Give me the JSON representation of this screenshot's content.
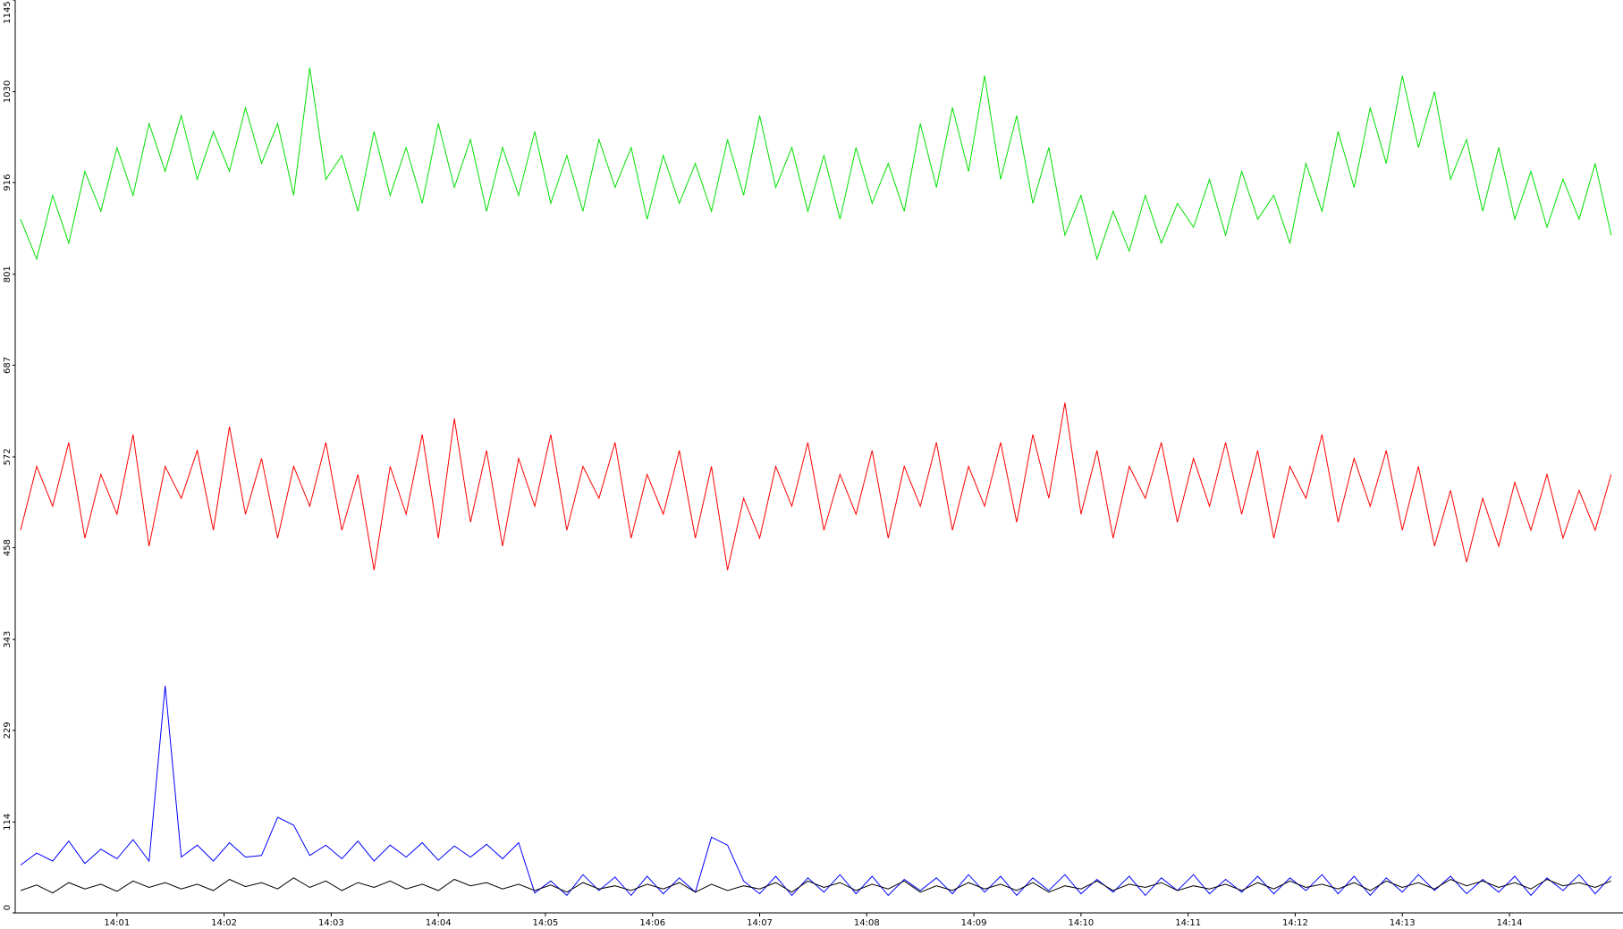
{
  "chart_data": {
    "type": "line",
    "x": [
      0.1,
      0.25,
      0.4,
      0.55,
      0.7,
      0.85,
      1,
      1.15,
      1.3,
      1.45,
      1.6,
      1.75,
      1.9,
      2.05,
      2.2,
      2.35,
      2.5,
      2.65,
      2.8,
      2.95,
      3.1,
      3.25,
      3.4,
      3.55,
      3.7,
      3.85,
      4,
      4.15,
      4.3,
      4.45,
      4.6,
      4.75,
      4.9,
      5.05,
      5.2,
      5.35,
      5.5,
      5.65,
      5.8,
      5.95,
      6.1,
      6.25,
      6.4,
      6.55,
      6.7,
      6.85,
      7,
      7.15,
      7.3,
      7.45,
      7.6,
      7.75,
      7.9,
      8.05,
      8.2,
      8.35,
      8.5,
      8.65,
      8.8,
      8.95,
      9.1,
      9.25,
      9.4,
      9.55,
      9.7,
      9.85,
      10,
      10.15,
      10.3,
      10.45,
      10.6,
      10.75,
      10.9,
      11.05,
      11.2,
      11.35,
      11.5,
      11.65,
      11.8,
      11.95,
      12.1,
      12.25,
      12.4,
      12.55,
      12.7,
      12.85,
      13,
      13.15,
      13.3,
      13.45,
      13.6,
      13.75,
      13.9,
      14.05,
      14.2,
      14.35,
      14.5,
      14.65,
      14.8,
      14.95
    ],
    "series": [
      {
        "color": "#00e000",
        "values": [
          870,
          820,
          900,
          840,
          930,
          880,
          960,
          900,
          990,
          930,
          1000,
          920,
          980,
          930,
          1010,
          940,
          990,
          900,
          1060,
          920,
          950,
          880,
          980,
          900,
          960,
          890,
          990,
          910,
          970,
          880,
          960,
          900,
          980,
          890,
          950,
          880,
          970,
          910,
          960,
          870,
          950,
          890,
          940,
          880,
          970,
          900,
          1000,
          910,
          960,
          880,
          950,
          870,
          960,
          890,
          940,
          880,
          990,
          910,
          1010,
          930,
          1050,
          920,
          1000,
          890,
          960,
          850,
          900,
          820,
          880,
          830,
          900,
          840,
          890,
          860,
          920,
          850,
          930,
          870,
          900,
          840,
          940,
          880,
          980,
          910,
          1010,
          940,
          1050,
          960,
          1030,
          920,
          970,
          880,
          960,
          870,
          930,
          860,
          920,
          870,
          940,
          850
        ]
      },
      {
        "color": "#ff0000",
        "values": [
          480,
          560,
          510,
          590,
          470,
          550,
          500,
          600,
          460,
          560,
          520,
          580,
          480,
          610,
          500,
          570,
          470,
          560,
          510,
          590,
          480,
          550,
          430,
          560,
          500,
          600,
          470,
          620,
          490,
          580,
          460,
          570,
          510,
          600,
          480,
          560,
          520,
          590,
          470,
          550,
          500,
          580,
          470,
          560,
          430,
          520,
          470,
          560,
          510,
          590,
          480,
          550,
          500,
          580,
          470,
          560,
          510,
          590,
          480,
          560,
          510,
          590,
          490,
          600,
          520,
          640,
          500,
          580,
          470,
          560,
          520,
          590,
          490,
          570,
          510,
          590,
          500,
          580,
          470,
          560,
          520,
          600,
          490,
          570,
          510,
          580,
          480,
          560,
          460,
          530,
          440,
          520,
          460,
          540,
          480,
          550,
          470,
          530,
          480,
          550
        ]
      },
      {
        "color": "#0000ff",
        "values": [
          60,
          75,
          65,
          90,
          62,
          80,
          68,
          92,
          65,
          285,
          70,
          85,
          65,
          88,
          70,
          72,
          120,
          110,
          72,
          85,
          68,
          90,
          65,
          85,
          70,
          88,
          66,
          84,
          70,
          86,
          68,
          88,
          25,
          40,
          22,
          48,
          28,
          45,
          22,
          46,
          24,
          44,
          26,
          95,
          85,
          40,
          24,
          46,
          22,
          44,
          26,
          48,
          24,
          46,
          22,
          42,
          28,
          44,
          24,
          48,
          26,
          46,
          22,
          44,
          28,
          48,
          24,
          42,
          26,
          46,
          22,
          44,
          28,
          48,
          24,
          42,
          26,
          46,
          24,
          44,
          28,
          48,
          24,
          46,
          22,
          44,
          26,
          48,
          28,
          46,
          24,
          42,
          26,
          46,
          22,
          44,
          28,
          48,
          24,
          46
        ]
      },
      {
        "color": "#000000",
        "values": [
          28,
          35,
          25,
          38,
          30,
          36,
          27,
          40,
          32,
          38,
          30,
          36,
          28,
          42,
          33,
          38,
          30,
          44,
          32,
          40,
          28,
          38,
          32,
          40,
          30,
          36,
          28,
          42,
          34,
          38,
          30,
          36,
          28,
          35,
          26,
          38,
          30,
          34,
          28,
          36,
          30,
          38,
          26,
          36,
          28,
          34,
          30,
          38,
          26,
          40,
          32,
          38,
          28,
          36,
          30,
          40,
          26,
          34,
          28,
          38,
          30,
          36,
          28,
          38,
          26,
          34,
          30,
          40,
          28,
          36,
          32,
          38,
          28,
          34,
          30,
          36,
          28,
          38,
          30,
          40,
          32,
          36,
          30,
          38,
          28,
          40,
          32,
          38,
          30,
          42,
          34,
          40,
          32,
          38,
          30,
          42,
          34,
          38,
          32,
          40
        ]
      }
    ],
    "xlim": [
      0.05,
      15.06
    ],
    "xticks": [
      {
        "value": 1,
        "label": "14:01"
      },
      {
        "value": 2,
        "label": "14:02"
      },
      {
        "value": 3,
        "label": "14:03"
      },
      {
        "value": 4,
        "label": "14:04"
      },
      {
        "value": 5,
        "label": "14:05"
      },
      {
        "value": 6,
        "label": "14:06"
      },
      {
        "value": 7,
        "label": "14:07"
      },
      {
        "value": 8,
        "label": "14:08"
      },
      {
        "value": 9,
        "label": "14:09"
      },
      {
        "value": 10,
        "label": "14:10"
      },
      {
        "value": 11,
        "label": "14:11"
      },
      {
        "value": 12,
        "label": "14:12"
      },
      {
        "value": 13,
        "label": "14:13"
      },
      {
        "value": 14,
        "label": "14:14"
      }
    ],
    "ylim": [
      0,
      1145
    ],
    "yticks": [
      0,
      114,
      229,
      343,
      458,
      572,
      687,
      801,
      916,
      1030,
      1145
    ]
  }
}
